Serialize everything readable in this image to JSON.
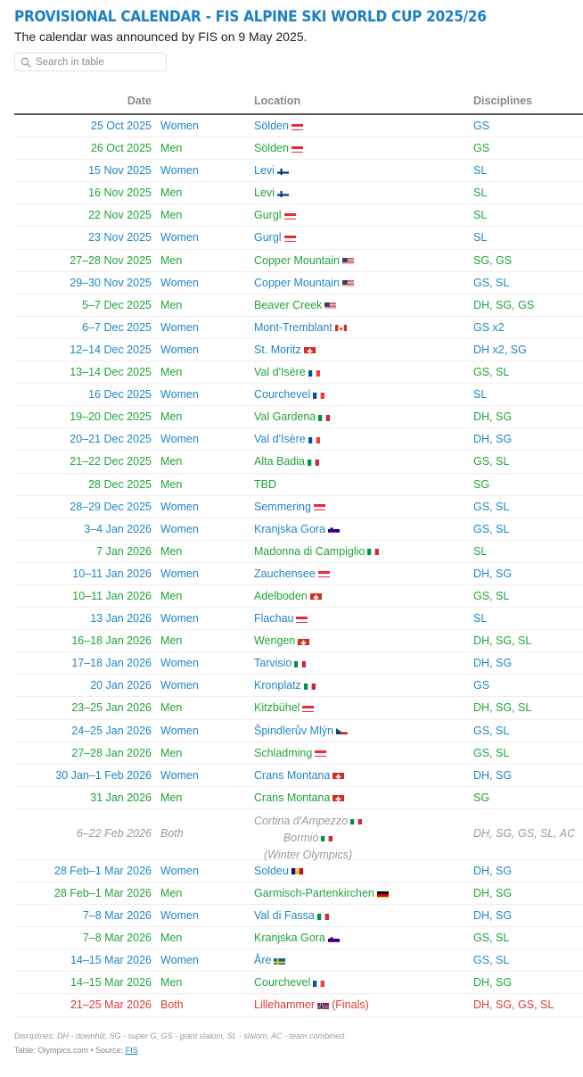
{
  "title": "PROVISIONAL CALENDAR - FIS ALPINE SKI WORLD CUP 2025/26",
  "subtitle": "The calendar was announced by FIS on 9 May 2025.",
  "search": {
    "placeholder": "Search in table",
    "icon": "search-icon"
  },
  "headers": {
    "date": "Date",
    "location": "Location",
    "disciplines": "Disciplines"
  },
  "colors": {
    "women": "#2187c5",
    "men": "#21a43c",
    "olympics": "#9b9b9b",
    "finals": "#e03a3a",
    "title": "#1b7fc4"
  },
  "rows": [
    {
      "date": "25 Oct 2025",
      "gender": "Women",
      "location": "Sölden",
      "flag": "AT",
      "disciplines": "GS"
    },
    {
      "date": "26 Oct 2025",
      "gender": "Men",
      "location": "Sölden",
      "flag": "AT",
      "disciplines": "GS"
    },
    {
      "date": "15 Nov 2025",
      "gender": "Women",
      "location": "Levi",
      "flag": "FI",
      "disciplines": "SL"
    },
    {
      "date": "16 Nov 2025",
      "gender": "Men",
      "location": "Levi",
      "flag": "FI",
      "disciplines": "SL"
    },
    {
      "date": "22 Nov 2025",
      "gender": "Men",
      "location": "Gurgl",
      "flag": "AT",
      "disciplines": "SL"
    },
    {
      "date": "23 Nov 2025",
      "gender": "Women",
      "location": "Gurgl",
      "flag": "AT",
      "disciplines": "SL"
    },
    {
      "date": "27–28 Nov 2025",
      "gender": "Men",
      "location": "Copper Mountain",
      "flag": "US",
      "disciplines": "SG, GS"
    },
    {
      "date": "29–30 Nov 2025",
      "gender": "Women",
      "location": "Copper Mountain",
      "flag": "US",
      "disciplines": "GS, SL"
    },
    {
      "date": "5–7 Dec 2025",
      "gender": "Men",
      "location": "Beaver Creek",
      "flag": "US",
      "disciplines": "DH, SG, GS"
    },
    {
      "date": "6–7 Dec 2025",
      "gender": "Women",
      "location": "Mont-Tremblant",
      "flag": "CA",
      "disciplines": "GS x2"
    },
    {
      "date": "12–14 Dec 2025",
      "gender": "Women",
      "location": "St. Moritz",
      "flag": "CH",
      "disciplines": "DH x2, SG"
    },
    {
      "date": "13–14 Dec 2025",
      "gender": "Men",
      "location": "Val d'Isère",
      "flag": "FR",
      "disciplines": "GS, SL"
    },
    {
      "date": "16 Dec 2025",
      "gender": "Women",
      "location": "Courchevel",
      "flag": "FR",
      "disciplines": "SL"
    },
    {
      "date": "19–20 Dec 2025",
      "gender": "Men",
      "location": "Val Gardena",
      "flag": "IT",
      "disciplines": "DH, SG"
    },
    {
      "date": "20–21 Dec 2025",
      "gender": "Women",
      "location": "Val d'Isère",
      "flag": "FR",
      "disciplines": "DH, SG"
    },
    {
      "date": "21–22 Dec 2025",
      "gender": "Men",
      "location": "Alta Badia",
      "flag": "IT",
      "disciplines": "GS, SL"
    },
    {
      "date": "28 Dec 2025",
      "gender": "Men",
      "location": "TBD",
      "flag": "",
      "disciplines": "SG"
    },
    {
      "date": "28–29 Dec 2025",
      "gender": "Women",
      "location": "Semmering",
      "flag": "AT",
      "disciplines": "GS, SL"
    },
    {
      "date": "3–4 Jan 2026",
      "gender": "Women",
      "location": "Kranjska Gora",
      "flag": "SI",
      "disciplines": "GS, SL"
    },
    {
      "date": "7 Jan 2026",
      "gender": "Men",
      "location": "Madonna di Campiglio",
      "flag": "IT",
      "disciplines": "SL"
    },
    {
      "date": "10–11 Jan 2026",
      "gender": "Women",
      "location": "Zauchensee",
      "flag": "AT",
      "disciplines": "DH, SG"
    },
    {
      "date": "10–11 Jan 2026",
      "gender": "Men",
      "location": "Adelboden",
      "flag": "CH",
      "disciplines": "GS, SL"
    },
    {
      "date": "13 Jan 2026",
      "gender": "Women",
      "location": "Flachau",
      "flag": "AT",
      "disciplines": "SL"
    },
    {
      "date": "16–18 Jan 2026",
      "gender": "Men",
      "location": "Wengen",
      "flag": "CH",
      "disciplines": "DH, SG, SL"
    },
    {
      "date": "17–18 Jan 2026",
      "gender": "Women",
      "location": "Tarvisio",
      "flag": "IT",
      "disciplines": "DH, SG"
    },
    {
      "date": "20 Jan 2026",
      "gender": "Women",
      "location": "Kronplatz",
      "flag": "IT",
      "disciplines": "GS"
    },
    {
      "date": "23–25 Jan 2026",
      "gender": "Men",
      "location": "Kitzbühel",
      "flag": "AT",
      "disciplines": "DH, SG, SL"
    },
    {
      "date": "24–25 Jan 2026",
      "gender": "Women",
      "location": "Špindlerův Mlýn",
      "flag": "CZ",
      "disciplines": "GS, SL"
    },
    {
      "date": "27–28 Jan 2026",
      "gender": "Men",
      "location": "Schladming",
      "flag": "AT",
      "disciplines": "GS, SL"
    },
    {
      "date": "30 Jan–1 Feb 2026",
      "gender": "Women",
      "location": "Crans Montana",
      "flag": "CH",
      "disciplines": "DH, SG"
    },
    {
      "date": "31 Jan 2026",
      "gender": "Men",
      "location": "Crans Montana",
      "flag": "CH",
      "disciplines": "SG"
    },
    {
      "date": "6–22 Feb 2026",
      "gender": "Both",
      "location": "Cortina d'Ampezzo",
      "flag": "IT",
      "location2": "Bormio",
      "flag2": "IT",
      "location3": "(Winter Olympics)",
      "disciplines": "DH, SG, GS, SL, AC",
      "style": "olymp"
    },
    {
      "date": "28 Feb–1 Mar 2026",
      "gender": "Women",
      "location": "Soldeu",
      "flag": "AD",
      "disciplines": "DH, SG"
    },
    {
      "date": "28 Feb–1 Mar 2026",
      "gender": "Men",
      "location": "Garmisch-Partenkirchen",
      "flag": "DE",
      "disciplines": "DH, SG"
    },
    {
      "date": "7–8 Mar 2026",
      "gender": "Women",
      "location": "Val di Fassa",
      "flag": "IT",
      "disciplines": "DH, SG"
    },
    {
      "date": "7–8 Mar 2026",
      "gender": "Men",
      "location": "Kranjska Gora",
      "flag": "SI",
      "disciplines": "GS, SL"
    },
    {
      "date": "14–15 Mar 2026",
      "gender": "Women",
      "location": "Åre",
      "flag": "SE",
      "disciplines": "GS, SL"
    },
    {
      "date": "14–15 Mar 2026",
      "gender": "Men",
      "location": "Courchevel",
      "flag": "FR",
      "disciplines": "DH, SG"
    },
    {
      "date": "21–25 Mar 2026",
      "gender": "Both",
      "location": "Lillehammer",
      "flag": "NO",
      "suffix": "(Finals)",
      "disciplines": "DH, SG, GS, SL",
      "style": "finals"
    }
  ],
  "footnote": "Disciplines: DH - downhill, SG - super G, GS - giant slalom, SL - slalom, AC - team combined",
  "source": {
    "prefix": "Table: Olympics.com • Source: ",
    "link": "FIS"
  }
}
